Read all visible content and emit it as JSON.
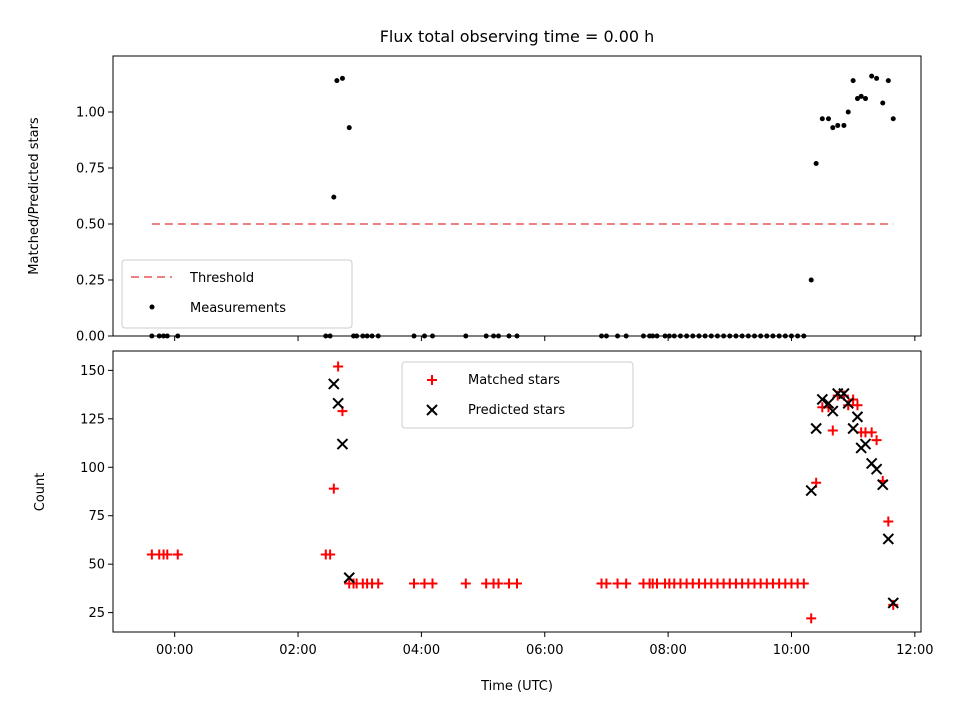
{
  "chart_data": [
    {
      "type": "scatter",
      "title": "Flux total observing time = 0.00 h",
      "xlabel": "",
      "ylabel": "Matched/Predicted stars",
      "xlim": [
        -1.0,
        12.1
      ],
      "ylim": [
        0.0,
        1.25
      ],
      "y_ticks": [
        0.0,
        0.25,
        0.5,
        0.75,
        1.0
      ],
      "y_tick_labels": [
        "0.00",
        "0.25",
        "0.50",
        "0.75",
        "1.00"
      ],
      "grid": false,
      "legend_placement": "lower-left",
      "threshold": {
        "name": "Threshold",
        "value": 0.5,
        "x": [
          -0.37,
          11.65
        ],
        "color": "#f08080"
      },
      "series": [
        {
          "name": "Measurements",
          "color": "#000000",
          "marker": "dot",
          "x": [
            -0.37,
            -0.25,
            -0.18,
            -0.12,
            0.05,
            2.45,
            2.52,
            2.58,
            2.63,
            2.72,
            2.83,
            2.9,
            2.95,
            3.05,
            3.12,
            3.2,
            3.3,
            3.88,
            4.05,
            4.18,
            4.72,
            5.05,
            5.17,
            5.25,
            5.42,
            5.55,
            6.92,
            7.0,
            7.18,
            7.32,
            7.6,
            7.7,
            7.75,
            7.82,
            7.95,
            8.02,
            8.1,
            8.2,
            8.3,
            8.4,
            8.5,
            8.6,
            8.7,
            8.8,
            8.9,
            9.0,
            9.1,
            9.2,
            9.3,
            9.4,
            9.5,
            9.6,
            9.7,
            9.8,
            9.9,
            10.0,
            10.1,
            10.2,
            10.32,
            10.4,
            10.5,
            10.6,
            10.67,
            10.75,
            10.85,
            10.92,
            11.0,
            11.07,
            11.13,
            11.2,
            11.3,
            11.38,
            11.48,
            11.57,
            11.65
          ],
          "y": [
            0,
            0,
            0,
            0,
            0,
            0,
            0,
            0.62,
            1.14,
            1.15,
            0.93,
            0,
            0,
            0,
            0,
            0,
            0,
            0,
            0,
            0,
            0,
            0,
            0,
            0,
            0,
            0,
            0,
            0,
            0,
            0,
            0,
            0,
            0,
            0,
            0,
            0,
            0,
            0,
            0,
            0,
            0,
            0,
            0,
            0,
            0,
            0,
            0,
            0,
            0,
            0,
            0,
            0,
            0,
            0,
            0,
            0,
            0,
            0,
            0.25,
            0.77,
            0.97,
            0.97,
            0.93,
            0.94,
            0.94,
            1.0,
            1.14,
            1.06,
            1.07,
            1.06,
            1.16,
            1.15,
            1.04,
            1.14,
            0.97
          ]
        }
      ]
    },
    {
      "type": "scatter",
      "title": "",
      "xlabel": "Time (UTC)",
      "ylabel": "Count",
      "xlim": [
        -1.0,
        12.1
      ],
      "ylim": [
        15,
        160
      ],
      "x_ticks": [
        0,
        2,
        4,
        6,
        8,
        10,
        12
      ],
      "x_tick_labels": [
        "00:00",
        "02:00",
        "04:00",
        "06:00",
        "08:00",
        "10:00",
        "12:00"
      ],
      "y_ticks": [
        25,
        50,
        75,
        100,
        125,
        150
      ],
      "y_tick_labels": [
        "25",
        "50",
        "75",
        "100",
        "125",
        "150"
      ],
      "grid": false,
      "legend_placement": "upper-center",
      "series": [
        {
          "name": "Matched stars",
          "color": "#ff0000",
          "marker": "plus",
          "x": [
            -0.37,
            -0.25,
            -0.18,
            -0.12,
            0.05,
            2.45,
            2.52,
            2.58,
            2.65,
            2.72,
            2.83,
            2.9,
            2.95,
            3.05,
            3.12,
            3.2,
            3.3,
            3.88,
            4.05,
            4.18,
            4.72,
            5.05,
            5.17,
            5.25,
            5.42,
            5.55,
            6.92,
            7.0,
            7.18,
            7.32,
            7.6,
            7.7,
            7.75,
            7.82,
            7.95,
            8.02,
            8.1,
            8.2,
            8.3,
            8.4,
            8.5,
            8.6,
            8.7,
            8.8,
            8.9,
            9.0,
            9.1,
            9.2,
            9.3,
            9.4,
            9.5,
            9.6,
            9.7,
            9.8,
            9.9,
            10.0,
            10.1,
            10.2,
            10.32,
            10.4,
            10.5,
            10.6,
            10.67,
            10.75,
            10.85,
            10.92,
            11.0,
            11.07,
            11.13,
            11.2,
            11.3,
            11.38,
            11.48,
            11.57,
            11.65
          ],
          "y": [
            55,
            55,
            55,
            55,
            55,
            55,
            55,
            89,
            152,
            129,
            40,
            40,
            40,
            40,
            40,
            40,
            40,
            40,
            40,
            40,
            40,
            40,
            40,
            40,
            40,
            40,
            40,
            40,
            40,
            40,
            40,
            40,
            40,
            40,
            40,
            40,
            40,
            40,
            40,
            40,
            40,
            40,
            40,
            40,
            40,
            40,
            40,
            40,
            40,
            40,
            40,
            40,
            40,
            40,
            40,
            40,
            40,
            40,
            22,
            92,
            131,
            131,
            119,
            137,
            137,
            132,
            135,
            132,
            118,
            118,
            118,
            114,
            93,
            72,
            29
          ]
        },
        {
          "name": "Predicted stars",
          "color": "#000000",
          "marker": "cross",
          "x": [
            2.58,
            2.65,
            2.72,
            2.83,
            10.32,
            10.4,
            10.5,
            10.6,
            10.67,
            10.75,
            10.85,
            10.92,
            11.0,
            11.07,
            11.13,
            11.2,
            11.3,
            11.38,
            11.48,
            11.57,
            11.65
          ],
          "y": [
            143,
            133,
            112,
            43,
            88,
            120,
            135,
            133,
            129,
            138,
            138,
            133,
            120,
            126,
            110,
            112,
            102,
            99,
            91,
            63,
            30
          ]
        }
      ]
    }
  ]
}
